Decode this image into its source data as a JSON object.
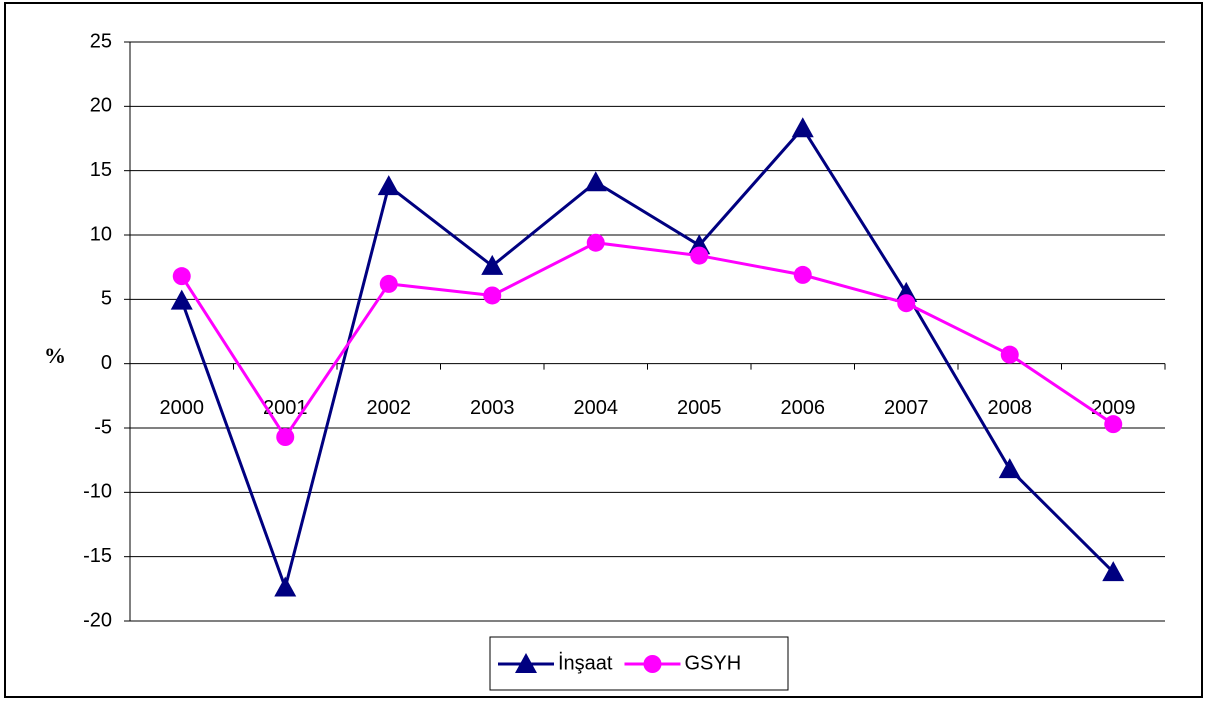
{
  "chart_data": {
    "type": "line",
    "ylabel": "%",
    "categories": [
      "2000",
      "2001",
      "2002",
      "2003",
      "2004",
      "2005",
      "2006",
      "2007",
      "2008",
      "2009"
    ],
    "series": [
      {
        "name": "İnşaat",
        "color": "#000080",
        "marker": "triangle",
        "values": [
          4.9,
          -17.4,
          13.8,
          7.6,
          14.1,
          9.2,
          18.3,
          5.5,
          -8.2,
          -16.2
        ]
      },
      {
        "name": "GSYH",
        "color": "#ff00ff",
        "marker": "circle",
        "values": [
          6.8,
          -5.7,
          6.2,
          5.3,
          9.4,
          8.4,
          6.9,
          4.7,
          0.7,
          -4.7
        ]
      }
    ],
    "ylim": [
      -20,
      25
    ],
    "yticks": [
      -20,
      -15,
      -10,
      -5,
      0,
      5,
      10,
      15,
      20,
      25
    ],
    "grid": true,
    "legend": "bottom"
  }
}
